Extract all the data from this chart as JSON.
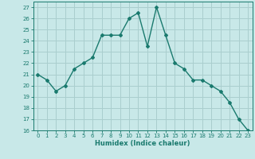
{
  "x": [
    0,
    1,
    2,
    3,
    4,
    5,
    6,
    7,
    8,
    9,
    10,
    11,
    12,
    13,
    14,
    15,
    16,
    17,
    18,
    19,
    20,
    21,
    22,
    23
  ],
  "y": [
    21,
    20.5,
    19.5,
    20,
    21.5,
    22,
    22.5,
    24.5,
    24.5,
    24.5,
    26,
    26.5,
    23.5,
    27,
    24.5,
    22,
    21.5,
    20.5,
    20.5,
    20,
    19.5,
    18.5,
    17,
    16
  ],
  "line_color": "#1a7a6e",
  "marker": "D",
  "markersize": 2.0,
  "linewidth": 1.0,
  "bg_color": "#c8e8e8",
  "grid_color": "#aacece",
  "xlabel": "Humidex (Indice chaleur)",
  "ylim": [
    16,
    27.5
  ],
  "xlim": [
    -0.5,
    23.5
  ],
  "yticks": [
    16,
    17,
    18,
    19,
    20,
    21,
    22,
    23,
    24,
    25,
    26,
    27
  ],
  "xticks": [
    0,
    1,
    2,
    3,
    4,
    5,
    6,
    7,
    8,
    9,
    10,
    11,
    12,
    13,
    14,
    15,
    16,
    17,
    18,
    19,
    20,
    21,
    22,
    23
  ],
  "tick_fontsize": 5.0,
  "xlabel_fontsize": 6.0
}
